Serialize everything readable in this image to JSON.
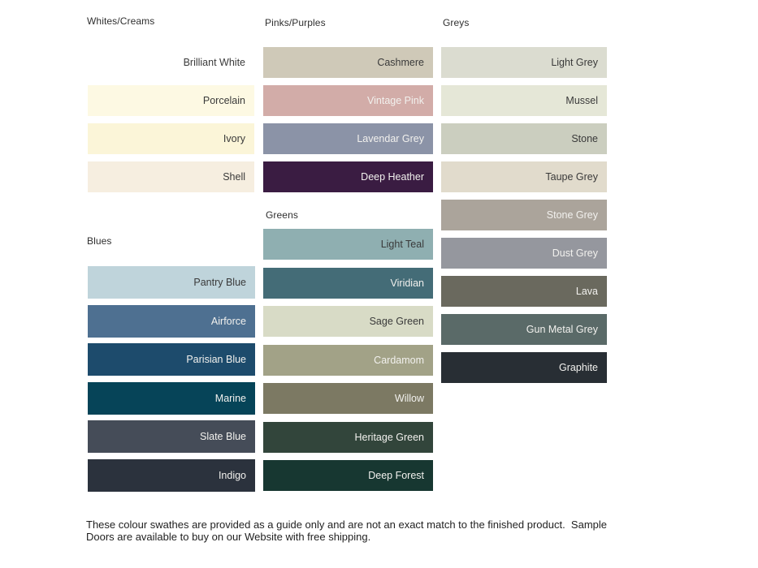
{
  "page": {
    "background": "#ffffff"
  },
  "colors": {
    "label_dark": "#3a3a3a",
    "label_light": "#f2f1ee",
    "footer_text": "#1f1f1f"
  },
  "sections": [
    {
      "id": "whites",
      "title": "Whites/Creams",
      "swatches": [
        {
          "name": "Brilliant White",
          "hex": "#ffffff",
          "text": "dark"
        },
        {
          "name": "Porcelain",
          "hex": "#fdf9e3",
          "text": "dark"
        },
        {
          "name": "Ivory",
          "hex": "#fbf5d8",
          "text": "dark"
        },
        {
          "name": "Shell",
          "hex": "#f6eee0",
          "text": "dark"
        }
      ]
    },
    {
      "id": "pinks",
      "title": "Pinks/Purples",
      "swatches": [
        {
          "name": "Cashmere",
          "hex": "#cfc9b8",
          "text": "dark"
        },
        {
          "name": "Vintage Pink",
          "hex": "#d2aca8",
          "text": "light"
        },
        {
          "name": "Lavendar Grey",
          "hex": "#8b93a7",
          "text": "light"
        },
        {
          "name": "Deep Heather",
          "hex": "#3a1c42",
          "text": "light"
        }
      ]
    },
    {
      "id": "greys",
      "title": "Greys",
      "swatches": [
        {
          "name": "Light Grey",
          "hex": "#dbdcd0",
          "text": "dark"
        },
        {
          "name": "Mussel",
          "hex": "#e5e7d7",
          "text": "dark"
        },
        {
          "name": "Stone",
          "hex": "#cbcebf",
          "text": "dark"
        },
        {
          "name": "Taupe Grey",
          "hex": "#e1dbcc",
          "text": "dark"
        },
        {
          "name": "Stone Grey",
          "hex": "#aba49b",
          "text": "light"
        },
        {
          "name": "Dust Grey",
          "hex": "#95979e",
          "text": "light"
        },
        {
          "name": "Lava",
          "hex": "#6a695e",
          "text": "light"
        },
        {
          "name": "Gun Metal Grey",
          "hex": "#5a6a68",
          "text": "light"
        },
        {
          "name": "Graphite",
          "hex": "#282e34",
          "text": "light"
        }
      ]
    },
    {
      "id": "blues",
      "title": "Blues",
      "swatches": [
        {
          "name": "Pantry Blue",
          "hex": "#bfd4db",
          "text": "dark"
        },
        {
          "name": "Airforce",
          "hex": "#4e7091",
          "text": "light"
        },
        {
          "name": "Parisian Blue",
          "hex": "#1d4b6c",
          "text": "light"
        },
        {
          "name": "Marine",
          "hex": "#064458",
          "text": "light"
        },
        {
          "name": "Slate Blue",
          "hex": "#454c58",
          "text": "light"
        },
        {
          "name": "Indigo",
          "hex": "#2b323d",
          "text": "light"
        }
      ]
    },
    {
      "id": "greens",
      "title": "Greens",
      "swatches": [
        {
          "name": "Light Teal",
          "hex": "#8fafb1",
          "text": "dark"
        },
        {
          "name": "Viridian",
          "hex": "#446c77",
          "text": "light"
        },
        {
          "name": "Sage Green",
          "hex": "#d8dbc6",
          "text": "dark"
        },
        {
          "name": "Cardamom",
          "hex": "#a2a287",
          "text": "light"
        },
        {
          "name": "Willow",
          "hex": "#7c7963",
          "text": "light"
        },
        {
          "name": "Heritage Green",
          "hex": "#32453b",
          "text": "light"
        },
        {
          "name": "Deep Forest",
          "hex": "#173731",
          "text": "light"
        }
      ]
    }
  ],
  "footer": {
    "line1": "These colour swathes are provided as a guide only and are not an exact match to the finished product.  Sample",
    "line2": "Doors are available to buy on our Website with free shipping."
  }
}
